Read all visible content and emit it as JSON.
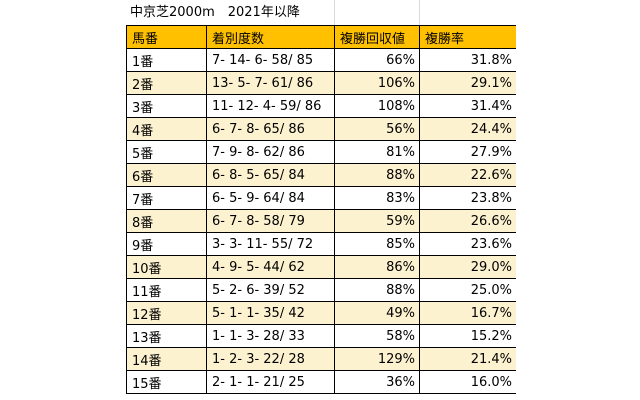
{
  "title": "中京芝2000m　2021年以降",
  "headers": [
    "馬番",
    "着別度数",
    "複勝回収値",
    "複勝率"
  ],
  "colors": {
    "header_bg": "#ffc000",
    "alt_row_bg": "#fdf2d0",
    "border": "#000000"
  },
  "rows": [
    {
      "gate": "1番",
      "record": "7- 14- 6- 58/ 85",
      "return_value": "66%",
      "rate": "31.8%"
    },
    {
      "gate": "2番",
      "record": "13- 5- 7- 61/ 86",
      "return_value": "106%",
      "rate": "29.1%"
    },
    {
      "gate": "3番",
      "record": "11- 12- 4- 59/ 86",
      "return_value": "108%",
      "rate": "31.4%"
    },
    {
      "gate": "4番",
      "record": "6- 7- 8- 65/ 86",
      "return_value": "56%",
      "rate": "24.4%"
    },
    {
      "gate": "5番",
      "record": "7- 9- 8- 62/ 86",
      "return_value": "81%",
      "rate": "27.9%"
    },
    {
      "gate": "6番",
      "record": "6- 8- 5- 65/ 84",
      "return_value": "88%",
      "rate": "22.6%"
    },
    {
      "gate": "7番",
      "record": "6- 5- 9- 64/ 84",
      "return_value": "83%",
      "rate": "23.8%"
    },
    {
      "gate": "8番",
      "record": "6- 7- 8- 58/ 79",
      "return_value": "59%",
      "rate": "26.6%"
    },
    {
      "gate": "9番",
      "record": "3- 3- 11- 55/ 72",
      "return_value": "85%",
      "rate": "23.6%"
    },
    {
      "gate": "10番",
      "record": "4- 9- 5- 44/ 62",
      "return_value": "86%",
      "rate": "29.0%"
    },
    {
      "gate": "11番",
      "record": "5- 2- 6- 39/ 52",
      "return_value": "88%",
      "rate": "25.0%"
    },
    {
      "gate": "12番",
      "record": "5- 1- 1- 35/ 42",
      "return_value": "49%",
      "rate": "16.7%"
    },
    {
      "gate": "13番",
      "record": "1- 1- 3- 28/ 33",
      "return_value": "58%",
      "rate": "15.2%"
    },
    {
      "gate": "14番",
      "record": "1- 2- 3- 22/ 28",
      "return_value": "129%",
      "rate": "21.4%"
    },
    {
      "gate": "15番",
      "record": "2- 1- 1- 21/ 25",
      "return_value": "36%",
      "rate": "16.0%"
    }
  ]
}
